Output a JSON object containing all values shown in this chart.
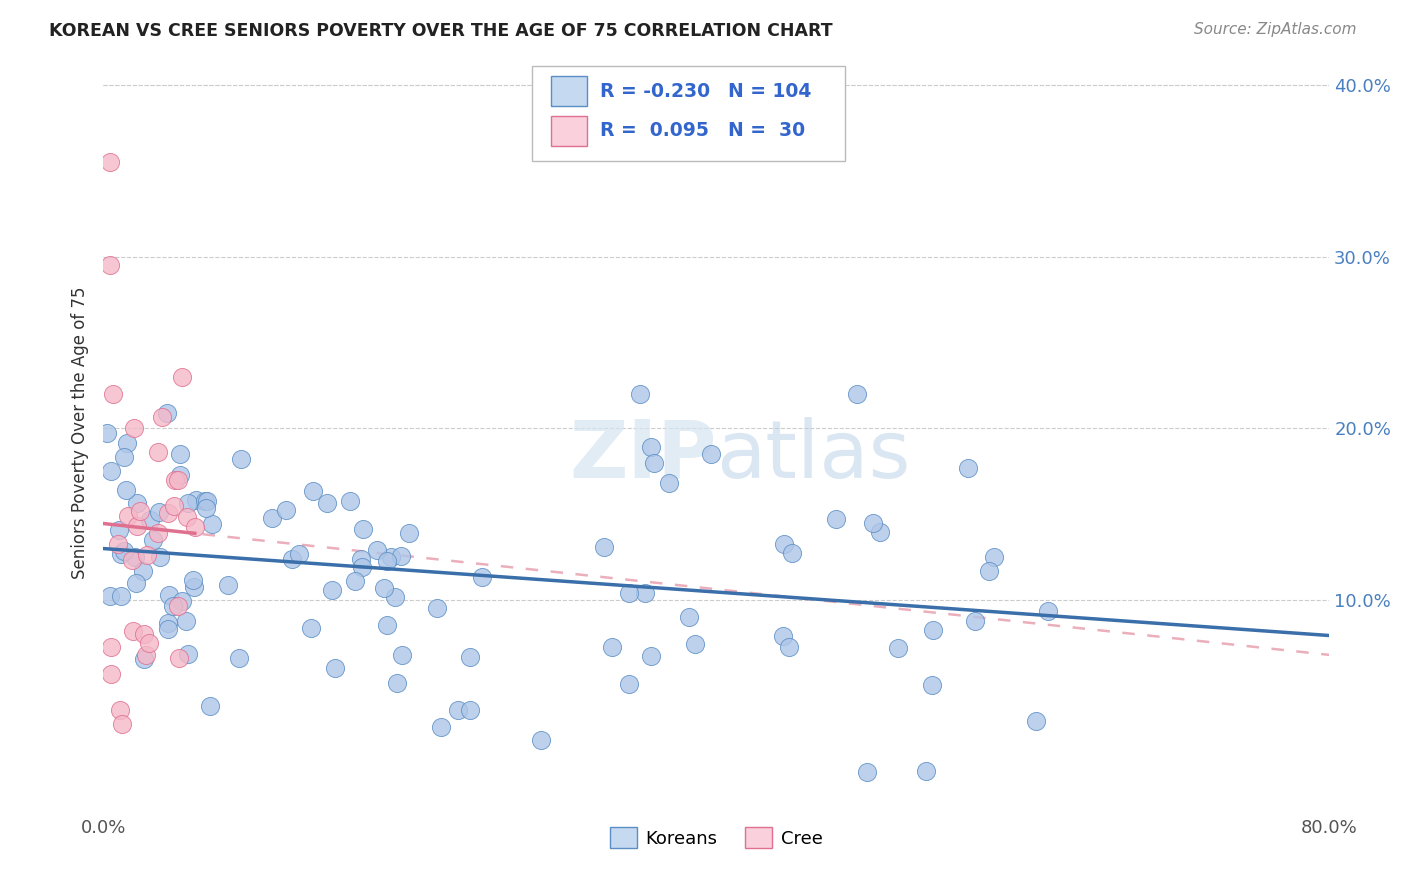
{
  "title": "KOREAN VS CREE SENIORS POVERTY OVER THE AGE OF 75 CORRELATION CHART",
  "source": "Source: ZipAtlas.com",
  "ylabel": "Seniors Poverty Over the Age of 75",
  "xlim": [
    0.0,
    0.8
  ],
  "ylim": [
    -0.025,
    0.42
  ],
  "korean_R": -0.23,
  "korean_N": 104,
  "cree_R": 0.095,
  "cree_N": 30,
  "blue_scatter_color": "#aec6e8",
  "blue_edge_color": "#5b8ec4",
  "pink_scatter_color": "#f4b8c8",
  "pink_edge_color": "#e07090",
  "blue_line_color": "#3a6faa",
  "pink_line_color": "#e07090",
  "pink_dash_color": "#e8a0b0",
  "legend_blue_face": "#c5daf0",
  "legend_pink_face": "#f9d0dc",
  "legend_blue_edge": "#5b8ec4",
  "legend_pink_edge": "#e07090",
  "watermark_color": "#d5e4f0",
  "grid_color": "#cccccc",
  "ytick_color": "#4a80c0",
  "xtick_color": "#555555"
}
